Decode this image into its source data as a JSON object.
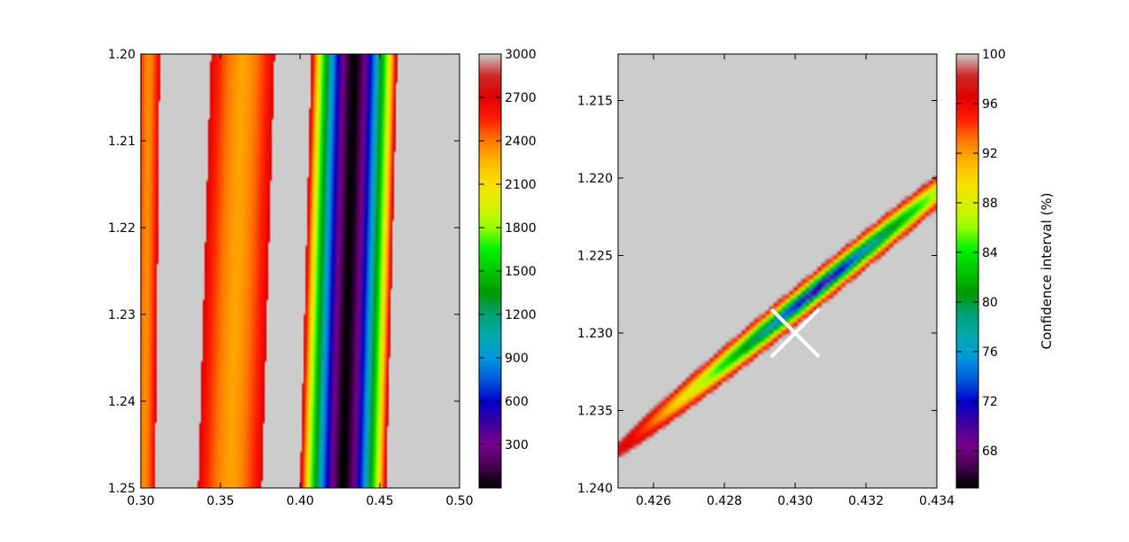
{
  "chart_data": [
    {
      "type": "heatmap",
      "panel": "left",
      "xlim": [
        0.3,
        0.5
      ],
      "ylim": [
        1.2,
        1.25
      ],
      "y_inverted": true,
      "x_ticks": [
        "0.30",
        "0.35",
        "0.40",
        "0.45",
        "0.50"
      ],
      "y_ticks": [
        "1.20",
        "1.21",
        "1.22",
        "1.23",
        "1.24",
        "1.25"
      ],
      "colormap": "nipy_spectral",
      "colorbar": {
        "range": [
          0,
          3000
        ],
        "ticks": [
          "300",
          "600",
          "900",
          "1200",
          "1500",
          "1800",
          "2100",
          "2400",
          "2700",
          "3000"
        ],
        "label": ""
      },
      "bands": [
        {
          "center_top": 0.305,
          "center_bottom": 0.302,
          "half_width": 0.007,
          "value_edge": 2700,
          "value_center": 2350
        },
        {
          "center_top": 0.364,
          "center_bottom": 0.356,
          "half_width": 0.02,
          "value_edge": 2700,
          "value_center": 2300
        },
        {
          "center_top": 0.434,
          "center_bottom": 0.427,
          "half_width": 0.027,
          "value_edge": 2800,
          "value_center": 0
        }
      ],
      "background_value": 3000
    },
    {
      "type": "heatmap",
      "panel": "right",
      "xlim": [
        0.425,
        0.434
      ],
      "ylim": [
        1.212,
        1.24
      ],
      "y_inverted": true,
      "x_ticks": [
        "0.426",
        "0.428",
        "0.430",
        "0.432",
        "0.434"
      ],
      "y_ticks": [
        "1.215",
        "1.220",
        "1.225",
        "1.230",
        "1.235",
        "1.240"
      ],
      "colormap": "nipy_spectral",
      "colorbar": {
        "range": [
          65,
          100
        ],
        "ticks": [
          "68",
          "72",
          "76",
          "80",
          "84",
          "88",
          "92",
          "96",
          "100"
        ],
        "label": "Confidence interval (%)"
      },
      "ellipse": {
        "center_x": 0.4307,
        "center_y": 1.227,
        "major_direction": [
          0.47,
          -0.88
        ],
        "major_half_length": 0.0134,
        "minor_half_length": 0.00063
      },
      "marker": {
        "type": "x",
        "x": 0.43,
        "y": 1.23,
        "color": "#ffffff"
      }
    }
  ]
}
